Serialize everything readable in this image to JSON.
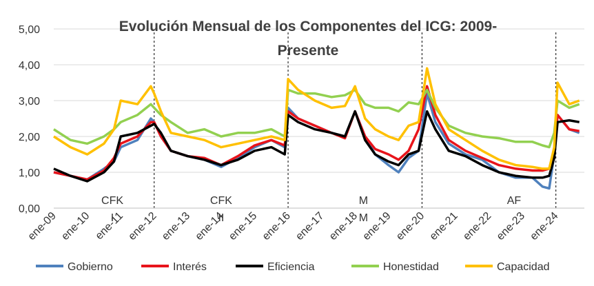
{
  "chart_data": {
    "type": "line",
    "title_line1": "Evolución Mensual de los Componentes del ICG: 2009-",
    "title_line2": "Presente",
    "xlabel": "",
    "ylabel": "",
    "ylim": [
      0,
      5
    ],
    "y_ticks": [
      "0,00",
      "1,00",
      "2,00",
      "3,00",
      "4,00",
      "5,00"
    ],
    "x_tick_labels": [
      "ene-09",
      "ene-10",
      "ene-11",
      "ene-12",
      "ene-13",
      "ene-14",
      "ene-15",
      "ene-16",
      "ene-17",
      "ene-18",
      "ene-19",
      "ene-20",
      "ene-21",
      "ene-22",
      "ene-23",
      "ene-24"
    ],
    "grid": true,
    "legend_position": "bottom",
    "period_dividers_year": [
      2012,
      2016,
      2020,
      2024
    ],
    "period_labels": [
      {
        "line1": "CFK",
        "line2": "I",
        "center_year": 2010.75
      },
      {
        "line1": "CFK",
        "line2": "II",
        "center_year": 2014.0
      },
      {
        "line1": "M",
        "line2": "M",
        "center_year": 2018.25
      },
      {
        "line1": "AF",
        "line2": "",
        "center_year": 2022.75
      }
    ],
    "series": [
      {
        "name": "Gobierno",
        "color": "#4f81bd",
        "points": [
          [
            2009.0,
            1.0
          ],
          [
            2009.5,
            0.9
          ],
          [
            2010.0,
            0.8
          ],
          [
            2010.5,
            1.1
          ],
          [
            2010.8,
            1.3
          ],
          [
            2011.0,
            1.7
          ],
          [
            2011.5,
            1.9
          ],
          [
            2011.9,
            2.5
          ],
          [
            2012.0,
            2.4
          ],
          [
            2012.2,
            2.0
          ],
          [
            2012.5,
            1.6
          ],
          [
            2013.0,
            1.45
          ],
          [
            2013.5,
            1.35
          ],
          [
            2014.0,
            1.15
          ],
          [
            2014.5,
            1.4
          ],
          [
            2015.0,
            1.7
          ],
          [
            2015.5,
            1.9
          ],
          [
            2015.9,
            1.7
          ],
          [
            2016.0,
            2.8
          ],
          [
            2016.3,
            2.5
          ],
          [
            2016.8,
            2.3
          ],
          [
            2017.3,
            2.1
          ],
          [
            2017.7,
            2.0
          ],
          [
            2018.0,
            2.7
          ],
          [
            2018.3,
            2.0
          ],
          [
            2018.6,
            1.5
          ],
          [
            2019.0,
            1.2
          ],
          [
            2019.3,
            1.0
          ],
          [
            2019.6,
            1.4
          ],
          [
            2019.9,
            1.6
          ],
          [
            2020.15,
            3.2
          ],
          [
            2020.4,
            2.4
          ],
          [
            2020.8,
            1.8
          ],
          [
            2021.3,
            1.5
          ],
          [
            2021.8,
            1.35
          ],
          [
            2022.3,
            1.0
          ],
          [
            2022.8,
            0.85
          ],
          [
            2023.3,
            0.85
          ],
          [
            2023.6,
            0.6
          ],
          [
            2023.8,
            0.55
          ],
          [
            2023.95,
            1.5
          ],
          [
            2024.05,
            2.6
          ],
          [
            2024.4,
            2.2
          ],
          [
            2024.7,
            2.1
          ]
        ]
      },
      {
        "name": "Interés",
        "color": "#e8141b",
        "points": [
          [
            2009.0,
            1.0
          ],
          [
            2009.5,
            0.9
          ],
          [
            2010.0,
            0.8
          ],
          [
            2010.5,
            1.05
          ],
          [
            2010.8,
            1.4
          ],
          [
            2011.0,
            1.8
          ],
          [
            2011.5,
            2.0
          ],
          [
            2011.9,
            2.4
          ],
          [
            2012.0,
            2.4
          ],
          [
            2012.2,
            2.0
          ],
          [
            2012.5,
            1.6
          ],
          [
            2013.0,
            1.45
          ],
          [
            2013.5,
            1.4
          ],
          [
            2014.0,
            1.2
          ],
          [
            2014.5,
            1.45
          ],
          [
            2015.0,
            1.75
          ],
          [
            2015.5,
            1.9
          ],
          [
            2015.9,
            1.75
          ],
          [
            2016.0,
            2.7
          ],
          [
            2016.3,
            2.5
          ],
          [
            2016.8,
            2.3
          ],
          [
            2017.3,
            2.1
          ],
          [
            2017.7,
            1.95
          ],
          [
            2018.0,
            2.7
          ],
          [
            2018.3,
            2.0
          ],
          [
            2018.6,
            1.65
          ],
          [
            2019.0,
            1.5
          ],
          [
            2019.3,
            1.35
          ],
          [
            2019.6,
            1.6
          ],
          [
            2019.9,
            2.2
          ],
          [
            2020.15,
            3.4
          ],
          [
            2020.4,
            2.6
          ],
          [
            2020.8,
            1.9
          ],
          [
            2021.3,
            1.6
          ],
          [
            2021.8,
            1.4
          ],
          [
            2022.3,
            1.2
          ],
          [
            2022.8,
            1.1
          ],
          [
            2023.3,
            1.05
          ],
          [
            2023.6,
            1.05
          ],
          [
            2023.8,
            1.1
          ],
          [
            2023.95,
            1.6
          ],
          [
            2024.05,
            2.6
          ],
          [
            2024.4,
            2.2
          ],
          [
            2024.7,
            2.15
          ]
        ]
      },
      {
        "name": "Eficiencia",
        "color": "#000000",
        "points": [
          [
            2009.0,
            1.1
          ],
          [
            2009.5,
            0.9
          ],
          [
            2010.0,
            0.75
          ],
          [
            2010.5,
            1.0
          ],
          [
            2010.8,
            1.3
          ],
          [
            2011.0,
            2.0
          ],
          [
            2011.5,
            2.1
          ],
          [
            2011.9,
            2.3
          ],
          [
            2012.0,
            2.35
          ],
          [
            2012.2,
            2.1
          ],
          [
            2012.5,
            1.6
          ],
          [
            2013.0,
            1.45
          ],
          [
            2013.5,
            1.35
          ],
          [
            2014.0,
            1.2
          ],
          [
            2014.5,
            1.35
          ],
          [
            2015.0,
            1.6
          ],
          [
            2015.5,
            1.7
          ],
          [
            2015.9,
            1.5
          ],
          [
            2016.0,
            2.6
          ],
          [
            2016.3,
            2.4
          ],
          [
            2016.8,
            2.2
          ],
          [
            2017.3,
            2.1
          ],
          [
            2017.7,
            2.0
          ],
          [
            2018.0,
            2.7
          ],
          [
            2018.3,
            1.9
          ],
          [
            2018.6,
            1.5
          ],
          [
            2019.0,
            1.3
          ],
          [
            2019.3,
            1.2
          ],
          [
            2019.6,
            1.5
          ],
          [
            2019.9,
            1.6
          ],
          [
            2020.15,
            2.7
          ],
          [
            2020.4,
            2.2
          ],
          [
            2020.8,
            1.6
          ],
          [
            2021.3,
            1.45
          ],
          [
            2021.8,
            1.2
          ],
          [
            2022.3,
            1.0
          ],
          [
            2022.8,
            0.9
          ],
          [
            2023.3,
            0.85
          ],
          [
            2023.6,
            0.85
          ],
          [
            2023.8,
            0.9
          ],
          [
            2023.95,
            1.4
          ],
          [
            2024.05,
            2.4
          ],
          [
            2024.4,
            2.45
          ],
          [
            2024.7,
            2.4
          ]
        ]
      },
      {
        "name": "Honestidad",
        "color": "#92d050",
        "points": [
          [
            2009.0,
            2.2
          ],
          [
            2009.5,
            1.9
          ],
          [
            2010.0,
            1.8
          ],
          [
            2010.5,
            2.0
          ],
          [
            2010.8,
            2.2
          ],
          [
            2011.0,
            2.4
          ],
          [
            2011.5,
            2.6
          ],
          [
            2011.9,
            2.9
          ],
          [
            2012.0,
            2.8
          ],
          [
            2012.2,
            2.6
          ],
          [
            2012.5,
            2.4
          ],
          [
            2013.0,
            2.1
          ],
          [
            2013.5,
            2.2
          ],
          [
            2014.0,
            2.0
          ],
          [
            2014.5,
            2.1
          ],
          [
            2015.0,
            2.1
          ],
          [
            2015.5,
            2.2
          ],
          [
            2015.9,
            2.0
          ],
          [
            2016.0,
            3.3
          ],
          [
            2016.3,
            3.2
          ],
          [
            2016.8,
            3.2
          ],
          [
            2017.3,
            3.1
          ],
          [
            2017.7,
            3.15
          ],
          [
            2018.0,
            3.3
          ],
          [
            2018.3,
            2.9
          ],
          [
            2018.6,
            2.8
          ],
          [
            2019.0,
            2.8
          ],
          [
            2019.3,
            2.7
          ],
          [
            2019.6,
            2.95
          ],
          [
            2019.9,
            2.9
          ],
          [
            2020.15,
            3.3
          ],
          [
            2020.4,
            2.8
          ],
          [
            2020.8,
            2.3
          ],
          [
            2021.3,
            2.1
          ],
          [
            2021.8,
            2.0
          ],
          [
            2022.3,
            1.95
          ],
          [
            2022.8,
            1.85
          ],
          [
            2023.3,
            1.85
          ],
          [
            2023.6,
            1.75
          ],
          [
            2023.8,
            1.7
          ],
          [
            2023.95,
            2.1
          ],
          [
            2024.05,
            3.0
          ],
          [
            2024.4,
            2.8
          ],
          [
            2024.7,
            2.9
          ]
        ]
      },
      {
        "name": "Capacidad",
        "color": "#ffc000",
        "points": [
          [
            2009.0,
            2.0
          ],
          [
            2009.5,
            1.7
          ],
          [
            2010.0,
            1.5
          ],
          [
            2010.5,
            1.8
          ],
          [
            2010.8,
            2.2
          ],
          [
            2011.0,
            3.0
          ],
          [
            2011.5,
            2.9
          ],
          [
            2011.9,
            3.4
          ],
          [
            2012.0,
            3.2
          ],
          [
            2012.2,
            2.7
          ],
          [
            2012.5,
            2.1
          ],
          [
            2013.0,
            2.0
          ],
          [
            2013.5,
            1.9
          ],
          [
            2014.0,
            1.7
          ],
          [
            2014.5,
            1.8
          ],
          [
            2015.0,
            1.9
          ],
          [
            2015.5,
            2.0
          ],
          [
            2015.9,
            1.9
          ],
          [
            2016.0,
            3.6
          ],
          [
            2016.3,
            3.3
          ],
          [
            2016.8,
            3.0
          ],
          [
            2017.3,
            2.8
          ],
          [
            2017.7,
            2.85
          ],
          [
            2018.0,
            3.4
          ],
          [
            2018.3,
            2.5
          ],
          [
            2018.6,
            2.2
          ],
          [
            2019.0,
            2.0
          ],
          [
            2019.3,
            1.9
          ],
          [
            2019.6,
            2.3
          ],
          [
            2019.9,
            2.4
          ],
          [
            2020.15,
            3.9
          ],
          [
            2020.4,
            2.9
          ],
          [
            2020.8,
            2.2
          ],
          [
            2021.3,
            1.9
          ],
          [
            2021.8,
            1.6
          ],
          [
            2022.3,
            1.35
          ],
          [
            2022.8,
            1.2
          ],
          [
            2023.3,
            1.15
          ],
          [
            2023.6,
            1.1
          ],
          [
            2023.8,
            1.1
          ],
          [
            2023.95,
            1.7
          ],
          [
            2024.05,
            3.5
          ],
          [
            2024.4,
            2.9
          ],
          [
            2024.7,
            3.0
          ]
        ]
      }
    ]
  }
}
